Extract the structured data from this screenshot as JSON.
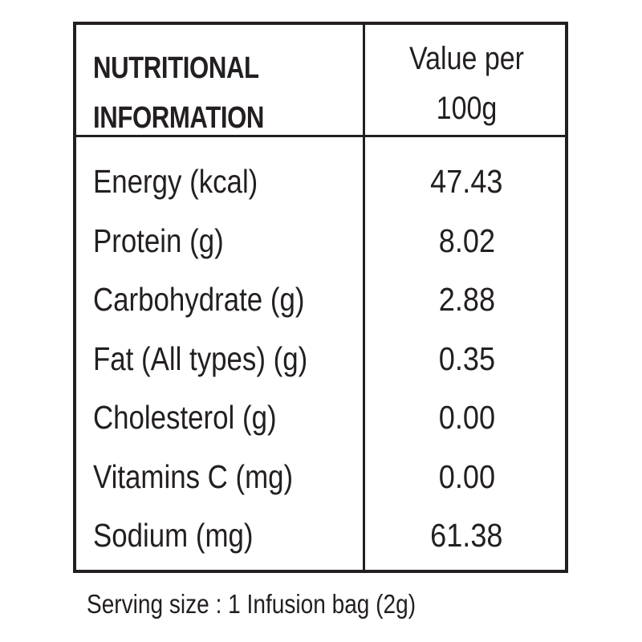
{
  "table": {
    "header": {
      "left_line1": "NUTRITIONAL",
      "left_line2": "INFORMATION",
      "right_line1": "Value per",
      "right_line2": "100g"
    },
    "rows": [
      {
        "label": "Energy (kcal)",
        "value": "47.43"
      },
      {
        "label": "Protein (g)",
        "value": "8.02"
      },
      {
        "label": "Carbohydrate (g)",
        "value": "2.88"
      },
      {
        "label": "Fat (All types) (g)",
        "value": "0.35"
      },
      {
        "label": "Cholesterol (g)",
        "value": "0.00"
      },
      {
        "label": "Vitamins C (mg)",
        "value": "0.00"
      },
      {
        "label": "Sodium (mg)",
        "value": "61.38"
      }
    ]
  },
  "footer": {
    "serving_size": "Serving size : 1 Infusion bag (2g)"
  }
}
